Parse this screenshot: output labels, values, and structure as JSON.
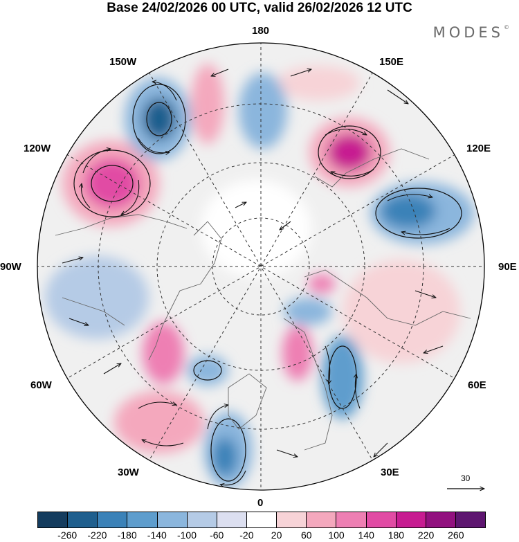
{
  "header": {
    "title": "Base 24/02/2026 00 UTC, valid 26/02/2026 12 UTC",
    "brand": "MODES",
    "brand_mark": "©"
  },
  "map": {
    "projection": "north polar stereographic",
    "longitude_labels": {
      "top": "180",
      "bottom": "0",
      "left": "90W",
      "right": "90E",
      "upper_left": "150W",
      "upper_right": "150E",
      "mid_upper_left": "120W",
      "mid_upper_right": "120E",
      "mid_lower_left": "60W",
      "mid_lower_right": "60E",
      "lower_left": "30W",
      "lower_right": "30E"
    },
    "wind_reference": {
      "value": "30"
    },
    "colors": {
      "negative_strong": "#1f5a8c",
      "negative": "#4a90c5",
      "positive": "#e03aa0",
      "positive_strong": "#a01480",
      "neutral": "#ffffff",
      "background": "#f0f0f0"
    }
  },
  "colorbar": {
    "colors": [
      "#143c5e",
      "#1f5f8e",
      "#3b82b8",
      "#5e9dcd",
      "#8bb6dd",
      "#b5cbe6",
      "#dcdff0",
      "#ffffff",
      "#f7d3d7",
      "#f4a8bd",
      "#ee7fb3",
      "#e14ba4",
      "#c71c91",
      "#92117f",
      "#5e1670"
    ],
    "tick_labels": [
      "-260",
      "-220",
      "-180",
      "-140",
      "-100",
      "-60",
      "-20",
      "20",
      "60",
      "100",
      "140",
      "180",
      "220",
      "260"
    ]
  }
}
